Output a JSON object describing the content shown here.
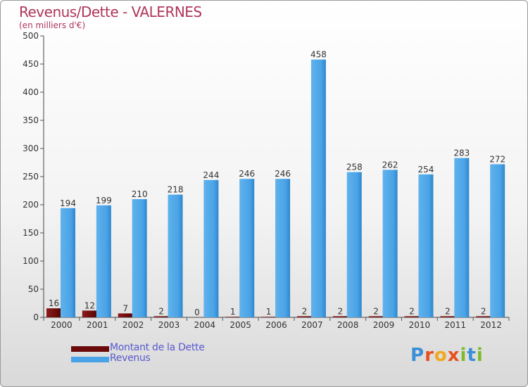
{
  "title": "Revenus/Dette - VALERNES",
  "subtitle": "(en milliers d'€)",
  "legend": [
    {
      "label": "Montant de la Dette",
      "color": "#6b0a0a"
    },
    {
      "label": "Revenus",
      "color": "#4aa3e6"
    }
  ],
  "logo": {
    "text": "Proxiti",
    "letters": [
      {
        "ch": "P",
        "color": "#3a8fd6"
      },
      {
        "ch": "r",
        "color": "#e8501e"
      },
      {
        "ch": "o",
        "color": "#f2a81c"
      },
      {
        "ch": "x",
        "color": "#e8501e"
      },
      {
        "ch": "i",
        "color": "#7dbb2a"
      },
      {
        "ch": "t",
        "color": "#3a8fd6"
      },
      {
        "ch": "i",
        "color": "#7dbb2a"
      }
    ]
  },
  "chart_data": {
    "type": "bar",
    "title": "Revenus/Dette - VALERNES",
    "subtitle": "(en milliers d'€)",
    "categories": [
      "2000",
      "2001",
      "2002",
      "2003",
      "2004",
      "2005",
      "2006",
      "2007",
      "2008",
      "2009",
      "2010",
      "2011",
      "2012"
    ],
    "series": [
      {
        "name": "Montant de la Dette",
        "color": "#6b0a0a",
        "values": [
          16,
          12,
          7,
          2,
          0,
          1,
          1,
          2,
          2,
          2,
          2,
          2,
          2
        ]
      },
      {
        "name": "Revenus",
        "color": "#4aa3e6",
        "values": [
          194,
          199,
          210,
          218,
          244,
          246,
          246,
          458,
          258,
          262,
          254,
          283,
          272
        ]
      }
    ],
    "ylim": [
      0,
      500
    ],
    "yticks": [
      0,
      50,
      100,
      150,
      200,
      250,
      300,
      350,
      400,
      450,
      500
    ],
    "grid": false,
    "legend_position": "bottom-left"
  }
}
